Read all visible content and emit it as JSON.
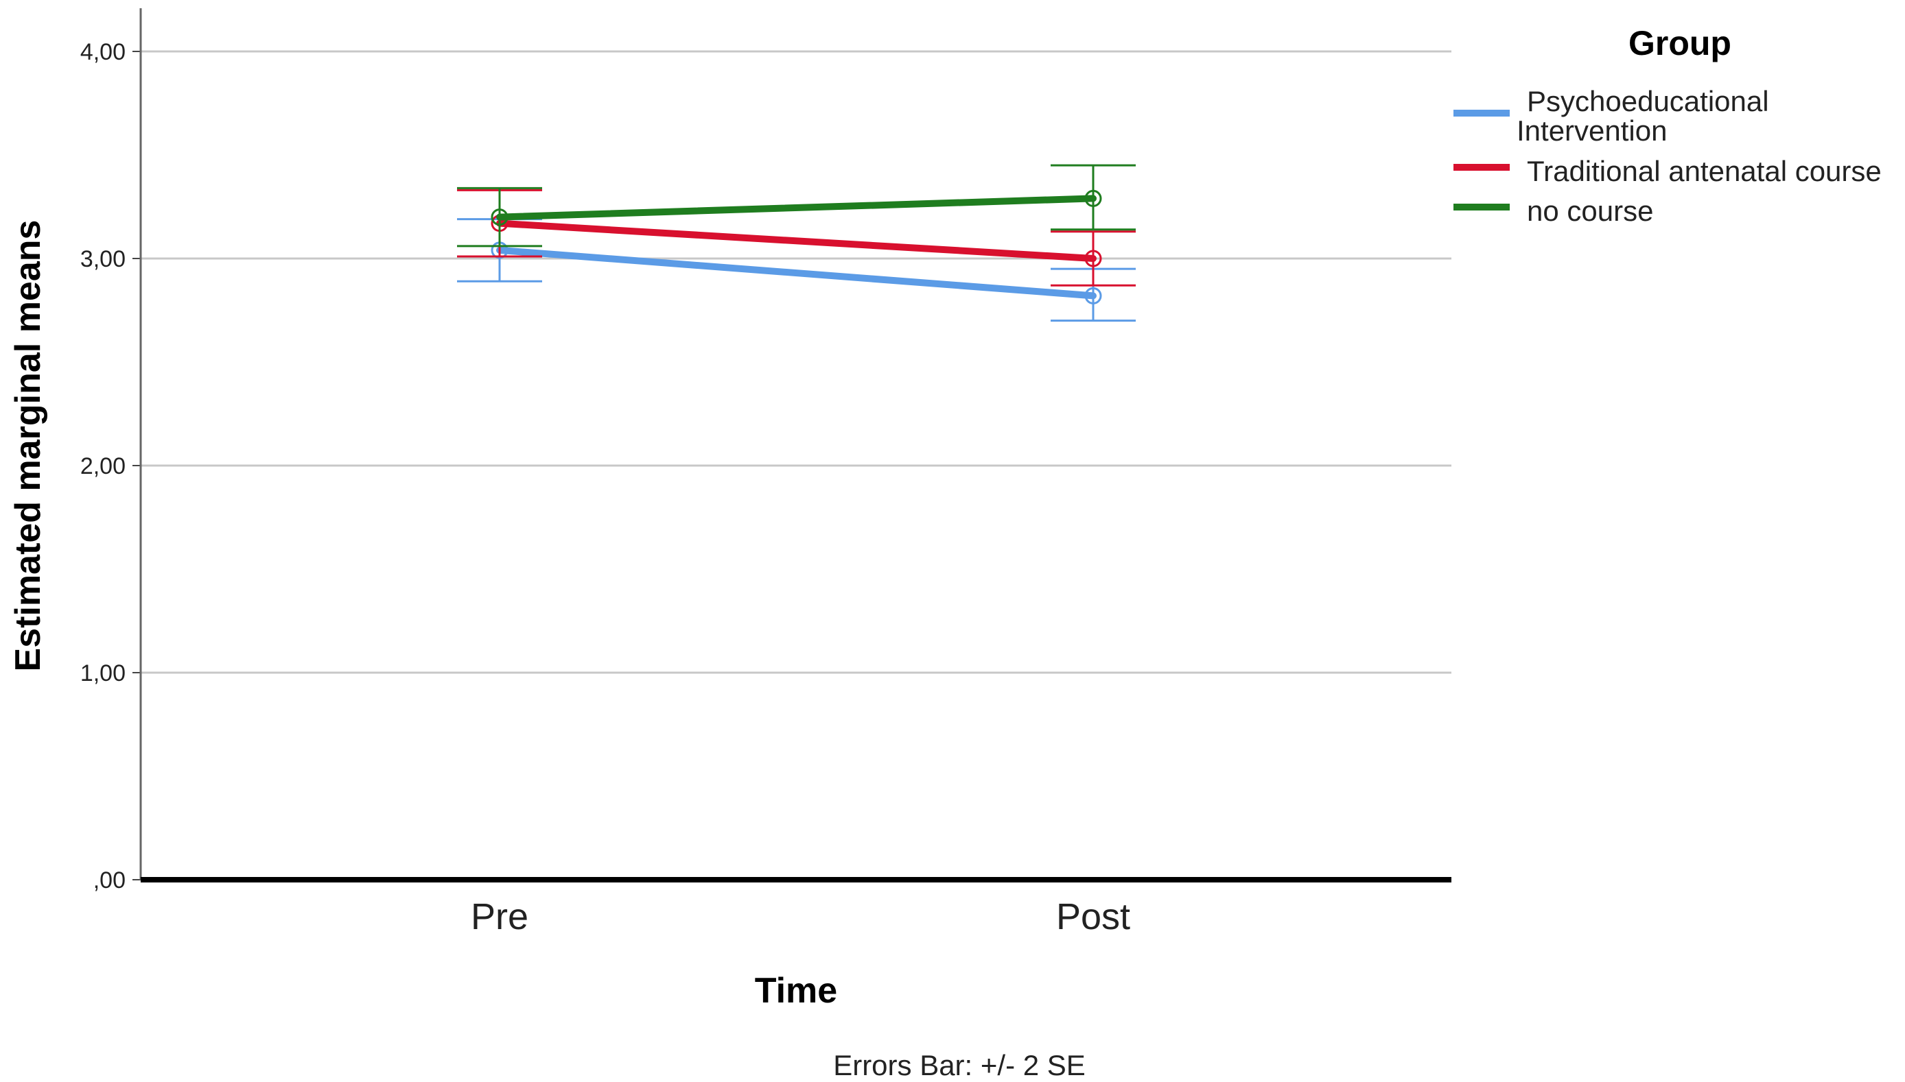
{
  "chart_data": {
    "type": "line",
    "xlabel": "Time",
    "ylabel": "Estimated marginal means",
    "categories": [
      "Pre",
      "Post"
    ],
    "ylim": [
      0,
      4
    ],
    "yticks": [
      0,
      1,
      2,
      3,
      4
    ],
    "ytick_labels": [
      ",00",
      "1,00",
      "2,00",
      "3,00",
      "4,00"
    ],
    "grid": true,
    "legend": {
      "title": "Group",
      "placement": "top-right"
    },
    "series": [
      {
        "name": "Psychoeducational Intervention",
        "name_lines": [
          "Psychoeducational",
          "Intervention"
        ],
        "color": "#5b9be6",
        "values": [
          3.04,
          2.82
        ],
        "err_low": [
          2.89,
          2.7
        ],
        "err_high": [
          3.19,
          2.95
        ]
      },
      {
        "name": "Traditional antenatal course",
        "name_lines": [
          "Traditional antenatal course"
        ],
        "color": "#d8102e",
        "values": [
          3.17,
          3.0
        ],
        "err_low": [
          3.01,
          2.87
        ],
        "err_high": [
          3.33,
          3.13
        ]
      },
      {
        "name": "no course",
        "name_lines": [
          "no course"
        ],
        "color": "#1f7d1f",
        "values": [
          3.2,
          3.29
        ],
        "err_low": [
          3.06,
          3.14
        ],
        "err_high": [
          3.34,
          3.45
        ]
      }
    ],
    "footnote": "Errors Bar: +/- 2 SE"
  }
}
